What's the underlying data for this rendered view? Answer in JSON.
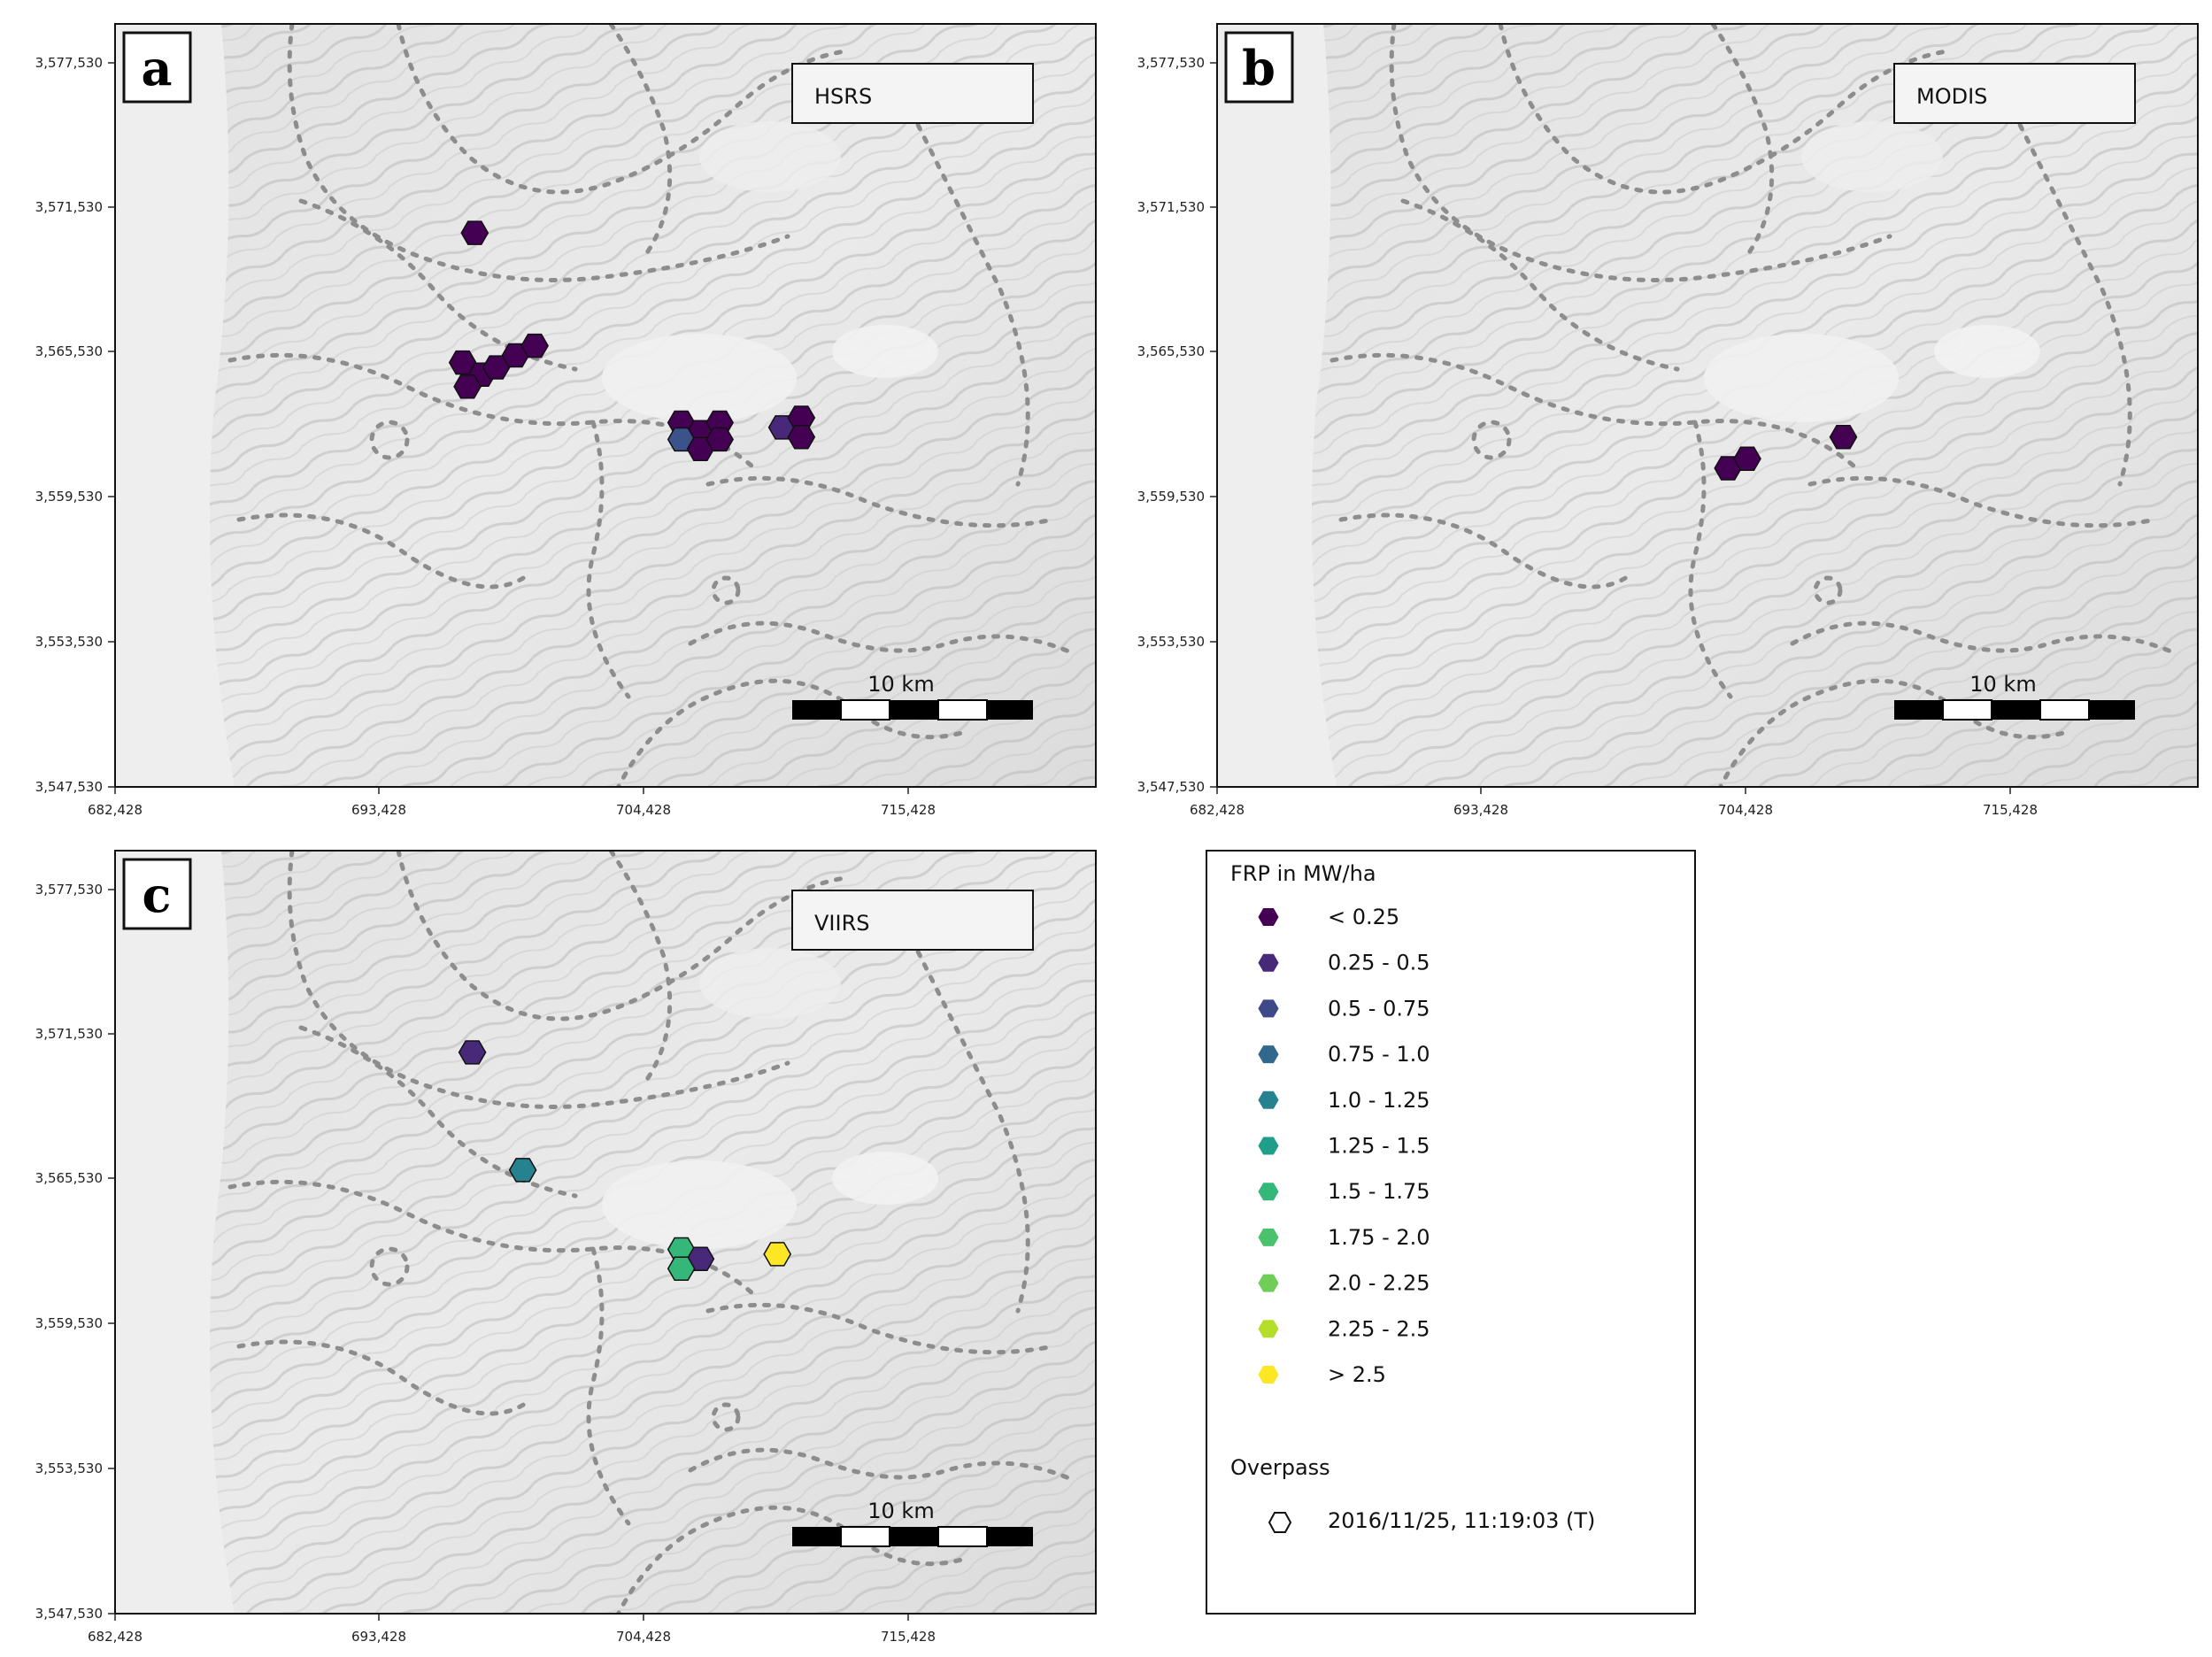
{
  "panels": [
    {
      "id": "a",
      "letter": "a",
      "sensor": "HSRS",
      "scale_label": "10 km",
      "fires": [
        {
          "e": 697400,
          "n": 3570300,
          "c": "#440154"
        },
        {
          "e": 696900,
          "n": 3564900,
          "c": "#440154"
        },
        {
          "e": 697700,
          "n": 3564400,
          "c": "#440154"
        },
        {
          "e": 698300,
          "n": 3564700,
          "c": "#440154"
        },
        {
          "e": 699100,
          "n": 3565200,
          "c": "#440154"
        },
        {
          "e": 699900,
          "n": 3565600,
          "c": "#440154"
        },
        {
          "e": 697100,
          "n": 3563900,
          "c": "#440154"
        },
        {
          "e": 706000,
          "n": 3562400,
          "c": "#440154"
        },
        {
          "e": 706800,
          "n": 3562000,
          "c": "#440154"
        },
        {
          "e": 707600,
          "n": 3562400,
          "c": "#440154"
        },
        {
          "e": 706000,
          "n": 3561700,
          "c": "#3b528b"
        },
        {
          "e": 706800,
          "n": 3561300,
          "c": "#440154"
        },
        {
          "e": 707600,
          "n": 3561700,
          "c": "#440154"
        },
        {
          "e": 710200,
          "n": 3562200,
          "c": "#482878"
        },
        {
          "e": 711000,
          "n": 3562600,
          "c": "#440154"
        },
        {
          "e": 711000,
          "n": 3561800,
          "c": "#440154"
        }
      ]
    },
    {
      "id": "b",
      "letter": "b",
      "sensor": "MODIS",
      "scale_label": "10 km",
      "fires": [
        {
          "e": 703700,
          "n": 3560500,
          "c": "#440154"
        },
        {
          "e": 704500,
          "n": 3560900,
          "c": "#440154"
        },
        {
          "e": 708500,
          "n": 3561800,
          "c": "#440154"
        }
      ]
    },
    {
      "id": "c",
      "letter": "c",
      "sensor": "VIIRS",
      "scale_label": "10 km",
      "fires": [
        {
          "e": 697300,
          "n": 3570600,
          "c": "#482878"
        },
        {
          "e": 699400,
          "n": 3565700,
          "c": "#26828e"
        },
        {
          "e": 706000,
          "n": 3562400,
          "c": "#35b779"
        },
        {
          "e": 706800,
          "n": 3562000,
          "c": "#482878"
        },
        {
          "e": 706000,
          "n": 3561600,
          "c": "#35b779"
        },
        {
          "e": 710000,
          "n": 3562200,
          "c": "#fde725"
        }
      ]
    }
  ],
  "axes": {
    "x_ticks": [
      "682,428",
      "693,428",
      "704,428",
      "715,428"
    ],
    "y_ticks": [
      "3,577,530",
      "3,571,530",
      "3,565,530",
      "3,559,530",
      "3,553,530",
      "3,547,530"
    ]
  },
  "legend": {
    "title": "FRP in MW/ha",
    "items": [
      {
        "label": "< 0.25",
        "color": "#440154"
      },
      {
        "label": "0.25 - 0.5",
        "color": "#482878"
      },
      {
        "label": "0.5 - 0.75",
        "color": "#3e4989"
      },
      {
        "label": "0.75 - 1.0",
        "color": "#31688e"
      },
      {
        "label": "1.0 - 1.25",
        "color": "#26828e"
      },
      {
        "label": "1.25 - 1.5",
        "color": "#1f9e89"
      },
      {
        "label": "1.5 - 1.75",
        "color": "#35b779"
      },
      {
        "label": "1.75 - 2.0",
        "color": "#4ac16d"
      },
      {
        "label": "2.0 - 2.25",
        "color": "#6ece58"
      },
      {
        "label": "2.25 - 2.5",
        "color": "#b5de2b"
      },
      {
        "label": "> 2.5",
        "color": "#fde725"
      }
    ],
    "overpass_title": "Overpass",
    "overpass_label": "2016/11/25, 11:19:03 (T)"
  }
}
